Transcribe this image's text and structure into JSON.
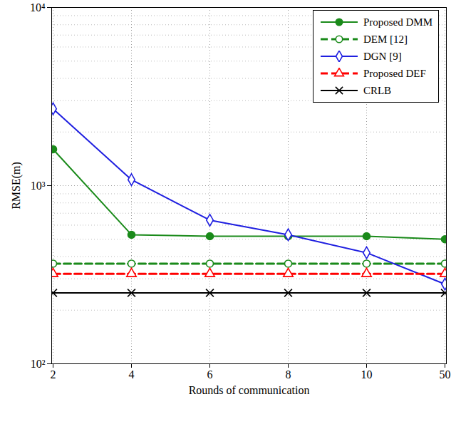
{
  "chart_data": {
    "type": "line",
    "x_label": "Rounds of communication",
    "y_label": "RMSE(m)",
    "x": [
      2,
      4,
      6,
      8,
      10,
      50
    ],
    "log": "y",
    "ylim": [
      100,
      10000
    ],
    "yticks": [
      {
        "value": 100,
        "label": "10²"
      },
      {
        "value": 1000,
        "label": "10³"
      },
      {
        "value": 10000,
        "label": "10⁴"
      }
    ],
    "grid": true,
    "legend": "top-right",
    "series": [
      {
        "name": "Proposed DMM",
        "color": "#1a8a1a",
        "marker": "filled_circle",
        "line_style": "solid",
        "values": [
          1600,
          530,
          520,
          520,
          520,
          500
        ]
      },
      {
        "name": "DEM [12]",
        "color": "#1a8a1a",
        "marker": "open_circle",
        "line_style": "dashed",
        "values": [
          365,
          365,
          365,
          365,
          365,
          365
        ]
      },
      {
        "name": "DGN [9]",
        "color": "#1f1fe0",
        "marker": "open_diamond",
        "line_style": "solid",
        "values": [
          2700,
          1080,
          640,
          530,
          420,
          280
        ]
      },
      {
        "name": "Proposed DEF",
        "color": "#ff0000",
        "marker": "open_triangle",
        "line_style": "dashed",
        "values": [
          320,
          320,
          320,
          320,
          320,
          320
        ]
      },
      {
        "name": "CRLB",
        "color": "#000000",
        "marker": "x",
        "line_style": "solid",
        "values": [
          250,
          250,
          250,
          250,
          250,
          250
        ]
      }
    ]
  }
}
